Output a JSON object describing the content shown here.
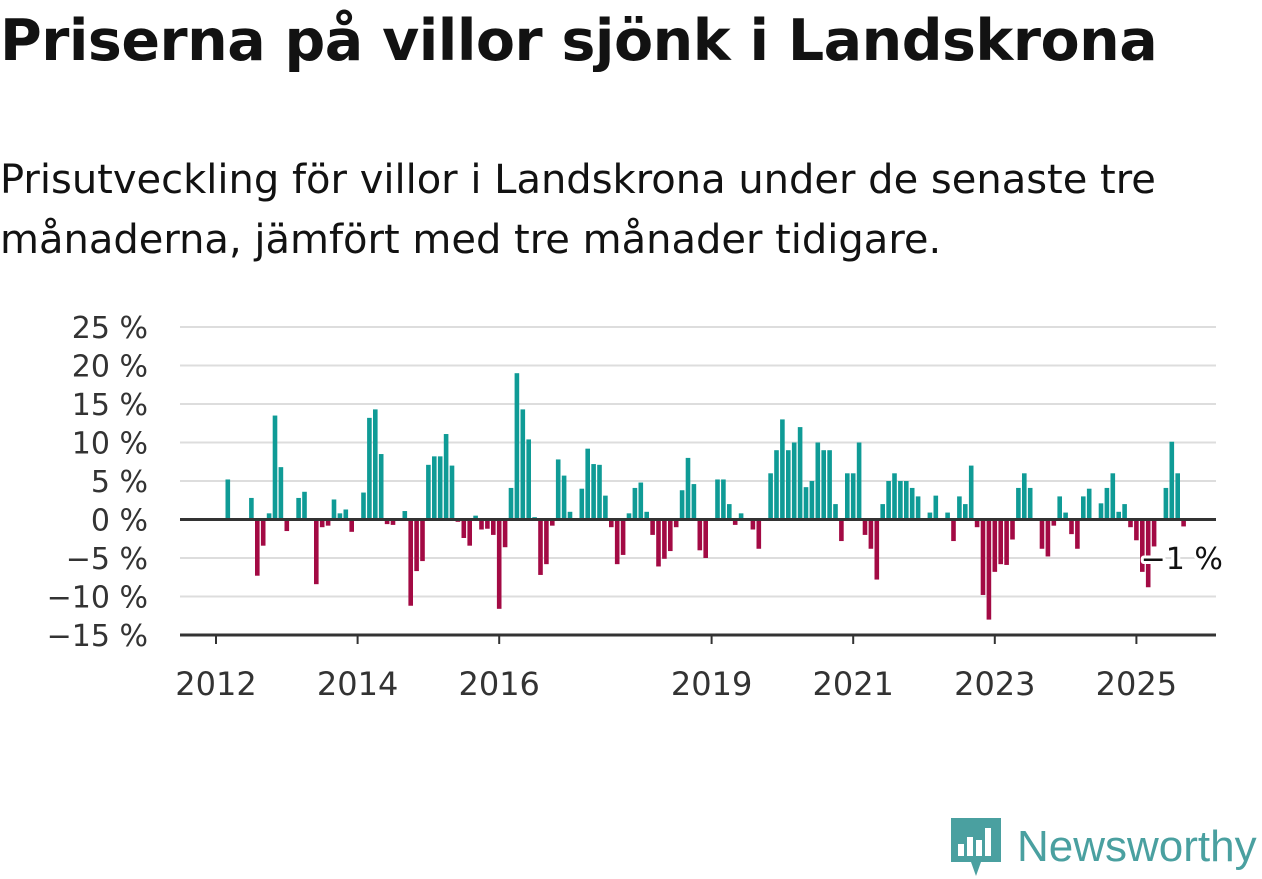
{
  "header": {
    "title": "Priserna på villor sjönk i Landskrona",
    "subtitle": "Prisutveckling för villor i Landskrona under de senaste tre månaderna, jämfört med tre månader tidigare."
  },
  "brand": {
    "name": "Newsworthy",
    "color": "#4aa0a0"
  },
  "chart_data": {
    "type": "bar",
    "colors": {
      "positive": "#0f9b96",
      "negative": "#a30a44",
      "grid": "#dddddd",
      "axis": "#333333"
    },
    "ylim": [
      -15,
      25
    ],
    "y_ticks": [
      {
        "value": 25,
        "label": "25 %"
      },
      {
        "value": 20,
        "label": "20 %"
      },
      {
        "value": 15,
        "label": "15 %"
      },
      {
        "value": 10,
        "label": "10 %"
      },
      {
        "value": 5,
        "label": "5 %"
      },
      {
        "value": 0,
        "label": "0 %"
      },
      {
        "value": -5,
        "label": "−5 %"
      },
      {
        "value": -10,
        "label": "−10 %"
      },
      {
        "value": -15,
        "label": "−15 %"
      }
    ],
    "x_ticks": [
      {
        "year": 2012,
        "label": "2012"
      },
      {
        "year": 2014,
        "label": "2014"
      },
      {
        "year": 2016,
        "label": "2016"
      },
      {
        "year": 2019,
        "label": "2019"
      },
      {
        "year": 2021,
        "label": "2021"
      },
      {
        "year": 2023,
        "label": "2023"
      },
      {
        "year": 2025,
        "label": "2025"
      }
    ],
    "x_start": "2012-03",
    "values": [
      5.2,
      0,
      0,
      0,
      2.8,
      -7.3,
      -3.4,
      0.8,
      13.5,
      6.8,
      -1.5,
      0,
      2.8,
      3.6,
      0,
      -8.4,
      -1,
      -0.8,
      2.6,
      0.8,
      1.3,
      -1.6,
      0,
      3.5,
      13.2,
      14.3,
      8.5,
      -0.6,
      -0.7,
      0,
      1.1,
      -11.2,
      -6.7,
      -5.4,
      7.1,
      8.2,
      8.2,
      11.1,
      7,
      -0.3,
      -2.4,
      -3.4,
      0.5,
      -1.3,
      -1.2,
      -2,
      -11.6,
      -3.6,
      4.1,
      19,
      14.3,
      10.4,
      0.3,
      -7.2,
      -5.8,
      -0.8,
      7.8,
      5.7,
      1,
      0,
      4,
      9.2,
      7.2,
      7.1,
      3.1,
      -1,
      -5.8,
      -4.6,
      0.8,
      4.1,
      4.8,
      1,
      -2,
      -6.1,
      -5.1,
      -4.1,
      -1,
      3.8,
      8,
      4.6,
      -4,
      -5,
      0,
      5.2,
      5.2,
      2,
      -0.7,
      0.8,
      0,
      -1.3,
      -3.8,
      0,
      6,
      9,
      13,
      9,
      10,
      12,
      4.2,
      5,
      10,
      9,
      9,
      2,
      -2.8,
      6,
      6,
      10,
      -2,
      -3.8,
      -7.8,
      2,
      5,
      6,
      5,
      5,
      4.1,
      3,
      0,
      0.9,
      3.1,
      0,
      0.9,
      -2.8,
      3,
      2,
      7,
      -1,
      -9.8,
      -13,
      -6.8,
      -5.8,
      -5.9,
      -2.6,
      4.1,
      6,
      4.1,
      0,
      -3.8,
      -4.8,
      -0.8,
      3,
      0.9,
      -1.9,
      -3.8,
      3,
      4,
      0,
      2.1,
      4.1,
      6,
      1,
      2,
      -1,
      -2.7,
      -6.8,
      -8.8,
      -3.5,
      0,
      4.1,
      10.1,
      6,
      -0.9
    ],
    "annotation": {
      "label": "−1 %",
      "value": -1
    }
  }
}
